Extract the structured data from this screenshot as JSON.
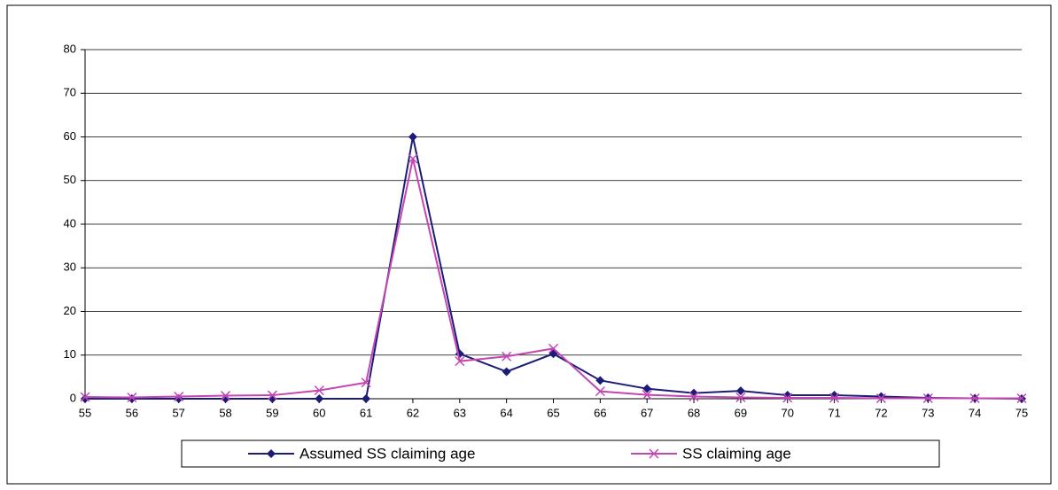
{
  "chart_data": {
    "type": "line",
    "x": [
      55,
      56,
      57,
      58,
      59,
      60,
      61,
      62,
      63,
      64,
      65,
      66,
      67,
      68,
      69,
      70,
      71,
      72,
      73,
      74,
      75
    ],
    "xlim": [
      55,
      75
    ],
    "xticks": [
      55,
      56,
      57,
      58,
      59,
      60,
      61,
      62,
      63,
      64,
      65,
      66,
      67,
      68,
      69,
      70,
      71,
      72,
      73,
      74,
      75
    ],
    "ylim": [
      0,
      80
    ],
    "yticks": [
      0,
      10,
      20,
      30,
      40,
      50,
      60,
      70,
      80
    ],
    "grid": true,
    "legend": "bottom",
    "series": [
      {
        "name": "Assumed SS claiming age",
        "color": "#1c1c78",
        "marker": "diamond",
        "values": [
          0,
          0,
          0,
          0,
          0,
          0,
          0,
          60,
          10.3,
          6.2,
          10.3,
          4.2,
          2.3,
          1.3,
          1.8,
          0.8,
          0.8,
          0.5,
          0.2,
          0.1,
          0
        ]
      },
      {
        "name": "SS claiming age",
        "color": "#c445b4",
        "marker": "x",
        "values": [
          0.4,
          0.3,
          0.5,
          0.7,
          0.8,
          1.9,
          3.7,
          55,
          8.6,
          9.7,
          11.5,
          1.7,
          0.9,
          0.5,
          0.3,
          0.2,
          0.2,
          0.1,
          0.1,
          0.1,
          0.1
        ]
      }
    ]
  }
}
